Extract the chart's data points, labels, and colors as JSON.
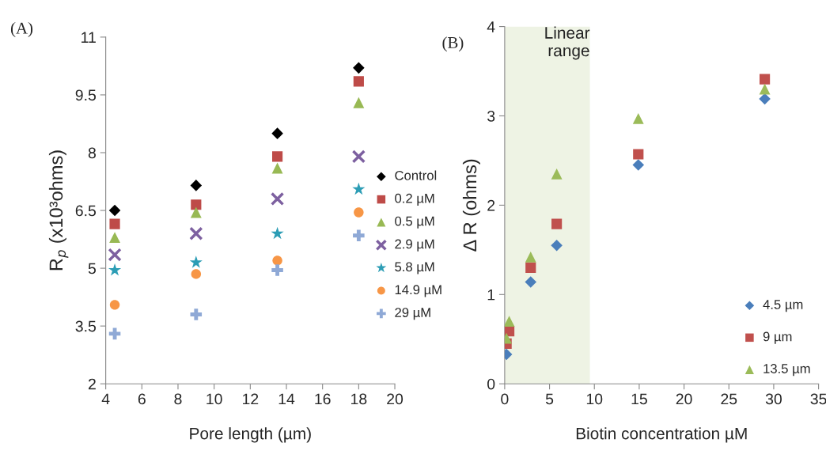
{
  "chart_data": [
    {
      "type": "scatter",
      "xlabel": "Pore length (µm)",
      "ylabel": "R$_{p}$ (x10³ohms)",
      "annotations": [
        "(A)"
      ],
      "x": [
        4.5,
        9,
        13.5,
        18
      ],
      "xlim": [
        4,
        20
      ],
      "xticks": [
        4,
        6,
        8,
        10,
        12,
        14,
        16,
        18,
        20
      ],
      "ylim": [
        2,
        11
      ],
      "yticks": [
        2,
        3.5,
        5,
        6.5,
        8,
        9.5,
        11
      ],
      "grid": false,
      "legend": "right",
      "series": [
        {
          "name": "Control",
          "color": "#000000",
          "marker": "diamond",
          "values": [
            6.5,
            7.15,
            8.5,
            10.2
          ]
        },
        {
          "name": "0.2 µM",
          "color": "#be4b48",
          "marker": "square",
          "values": [
            6.15,
            6.65,
            7.9,
            9.85
          ]
        },
        {
          "name": "0.5 µM",
          "color": "#98b954",
          "marker": "triangle",
          "values": [
            5.8,
            6.45,
            7.6,
            9.3
          ]
        },
        {
          "name": "2.9 µM",
          "color": "#7d60a0",
          "marker": "x",
          "values": [
            5.35,
            5.9,
            6.8,
            7.9
          ]
        },
        {
          "name": "5.8 µM",
          "color": "#2c9db5",
          "marker": "star",
          "values": [
            4.95,
            5.15,
            5.9,
            7.05
          ]
        },
        {
          "name": "14.9 µM",
          "color": "#f79646",
          "marker": "circle",
          "values": [
            4.05,
            4.85,
            5.2,
            6.45
          ]
        },
        {
          "name": "29 µM",
          "color": "#8fa9d6",
          "marker": "cross",
          "values": [
            3.3,
            3.8,
            4.95,
            5.85
          ]
        }
      ]
    },
    {
      "type": "scatter",
      "xlabel": "Biotin concentration µM",
      "ylabel": "Δ R (ohms)",
      "annotations": [
        "(B)"
      ],
      "x": [
        0.2,
        0.5,
        2.9,
        5.8,
        14.9,
        29
      ],
      "xlim": [
        0,
        35
      ],
      "xticks": [
        0,
        5,
        10,
        15,
        20,
        25,
        30,
        35
      ],
      "ylim": [
        0,
        4
      ],
      "yticks": [
        0,
        1,
        2,
        3,
        4
      ],
      "grid": false,
      "legend": "bottom right",
      "bands": [
        {
          "axis": "x",
          "from": 0,
          "to": 9.5,
          "label": "Linear\nrange",
          "color": "#eef3e4"
        }
      ],
      "series": [
        {
          "name": "4.5 µm",
          "color": "#4a7ebb",
          "marker": "diamond",
          "values": [
            0.33,
            null,
            1.14,
            1.55,
            2.45,
            3.19
          ]
        },
        {
          "name": "9 µm",
          "color": "#c0504d",
          "marker": "square",
          "values": [
            0.45,
            0.59,
            1.3,
            1.79,
            2.57,
            3.41
          ]
        },
        {
          "name": "13.5 µm",
          "color": "#9bbb59",
          "marker": "triangle",
          "values": [
            0.51,
            0.7,
            1.42,
            2.35,
            2.97,
            3.3
          ]
        }
      ]
    }
  ]
}
